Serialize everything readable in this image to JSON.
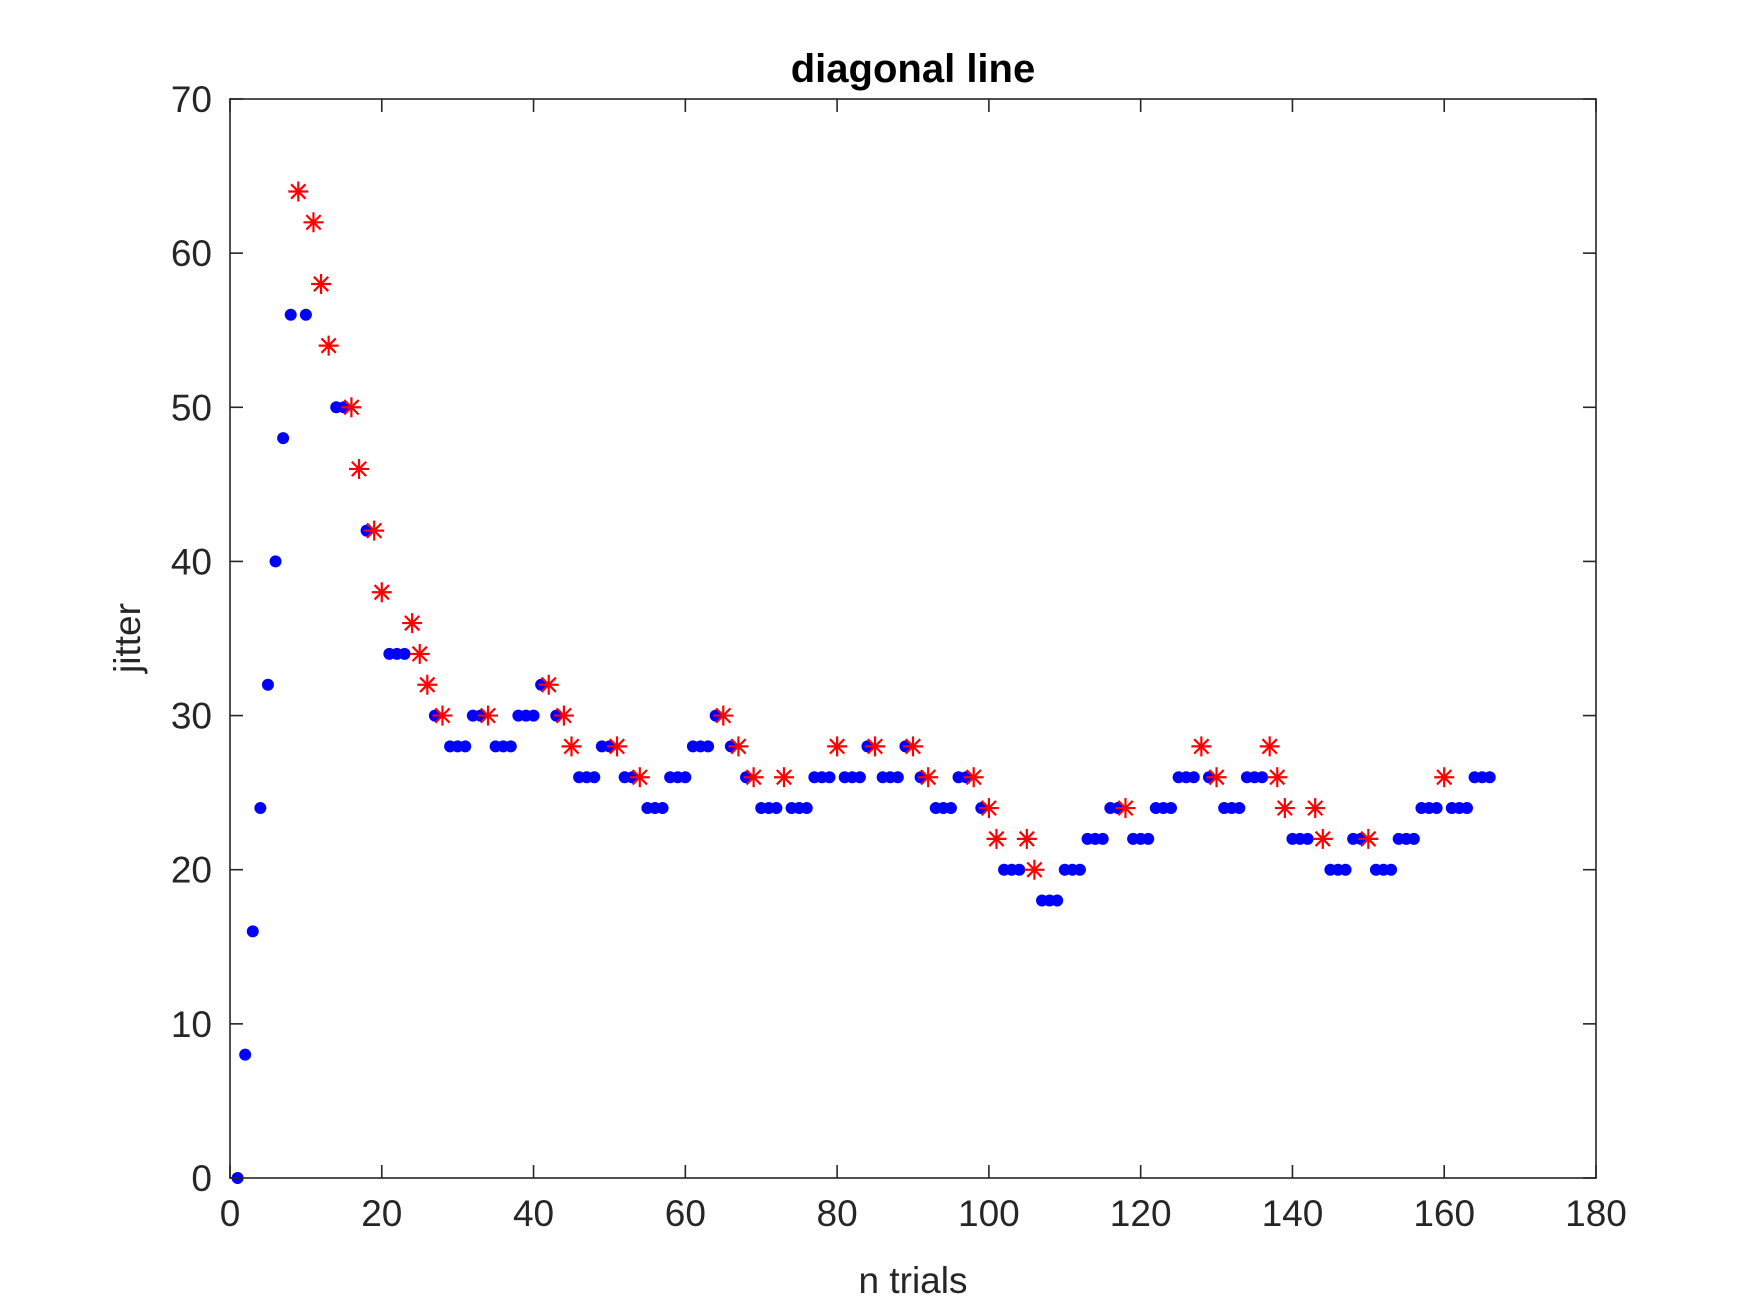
{
  "chart_data": {
    "type": "scatter",
    "title": "diagonal line",
    "xlabel": "n trials",
    "ylabel": "jitter",
    "xlim": [
      0,
      180
    ],
    "ylim": [
      0,
      70
    ],
    "x_ticks": [
      0,
      20,
      40,
      60,
      80,
      100,
      120,
      140,
      160,
      180
    ],
    "y_ticks": [
      0,
      10,
      20,
      30,
      40,
      50,
      60,
      70
    ],
    "grid": false,
    "colors": {
      "dots": "#0000ff",
      "stars": "#ff0000",
      "axis": "#262626"
    },
    "series": [
      {
        "marker": "dot",
        "color": "#0000ff",
        "points": [
          [
            1,
            0
          ],
          [
            2,
            8
          ],
          [
            3,
            16
          ],
          [
            4,
            24
          ],
          [
            5,
            32
          ],
          [
            6,
            40
          ],
          [
            7,
            48
          ],
          [
            8,
            56
          ],
          [
            10,
            56
          ],
          [
            14,
            50
          ],
          [
            15,
            50
          ],
          [
            18,
            42
          ],
          [
            21,
            34
          ],
          [
            22,
            34
          ],
          [
            23,
            34
          ],
          [
            27,
            30
          ],
          [
            29,
            28
          ],
          [
            30,
            28
          ],
          [
            31,
            28
          ],
          [
            32,
            30
          ],
          [
            33,
            30
          ],
          [
            35,
            28
          ],
          [
            36,
            28
          ],
          [
            37,
            28
          ],
          [
            38,
            30
          ],
          [
            39,
            30
          ],
          [
            40,
            30
          ],
          [
            41,
            32
          ],
          [
            43,
            30
          ],
          [
            46,
            26
          ],
          [
            47,
            26
          ],
          [
            48,
            26
          ],
          [
            49,
            28
          ],
          [
            50,
            28
          ],
          [
            52,
            26
          ],
          [
            53,
            26
          ],
          [
            55,
            24
          ],
          [
            56,
            24
          ],
          [
            57,
            24
          ],
          [
            58,
            26
          ],
          [
            59,
            26
          ],
          [
            60,
            26
          ],
          [
            61,
            28
          ],
          [
            62,
            28
          ],
          [
            63,
            28
          ],
          [
            64,
            30
          ],
          [
            66,
            28
          ],
          [
            68,
            26
          ],
          [
            70,
            24
          ],
          [
            71,
            24
          ],
          [
            72,
            24
          ],
          [
            74,
            24
          ],
          [
            75,
            24
          ],
          [
            76,
            24
          ],
          [
            77,
            26
          ],
          [
            78,
            26
          ],
          [
            79,
            26
          ],
          [
            81,
            26
          ],
          [
            82,
            26
          ],
          [
            83,
            26
          ],
          [
            84,
            28
          ],
          [
            86,
            26
          ],
          [
            87,
            26
          ],
          [
            88,
            26
          ],
          [
            89,
            28
          ],
          [
            91,
            26
          ],
          [
            93,
            24
          ],
          [
            94,
            24
          ],
          [
            95,
            24
          ],
          [
            96,
            26
          ],
          [
            97,
            26
          ],
          [
            99,
            24
          ],
          [
            102,
            20
          ],
          [
            103,
            20
          ],
          [
            104,
            20
          ],
          [
            107,
            18
          ],
          [
            108,
            18
          ],
          [
            109,
            18
          ],
          [
            110,
            20
          ],
          [
            111,
            20
          ],
          [
            112,
            20
          ],
          [
            113,
            22
          ],
          [
            114,
            22
          ],
          [
            115,
            22
          ],
          [
            116,
            24
          ],
          [
            117,
            24
          ],
          [
            119,
            22
          ],
          [
            120,
            22
          ],
          [
            121,
            22
          ],
          [
            122,
            24
          ],
          [
            123,
            24
          ],
          [
            124,
            24
          ],
          [
            125,
            26
          ],
          [
            126,
            26
          ],
          [
            127,
            26
          ],
          [
            129,
            26
          ],
          [
            131,
            24
          ],
          [
            132,
            24
          ],
          [
            133,
            24
          ],
          [
            134,
            26
          ],
          [
            135,
            26
          ],
          [
            136,
            26
          ],
          [
            140,
            22
          ],
          [
            141,
            22
          ],
          [
            142,
            22
          ],
          [
            145,
            20
          ],
          [
            146,
            20
          ],
          [
            147,
            20
          ],
          [
            148,
            22
          ],
          [
            149,
            22
          ],
          [
            151,
            20
          ],
          [
            152,
            20
          ],
          [
            153,
            20
          ],
          [
            154,
            22
          ],
          [
            155,
            22
          ],
          [
            156,
            22
          ],
          [
            157,
            24
          ],
          [
            158,
            24
          ],
          [
            159,
            24
          ],
          [
            161,
            24
          ],
          [
            162,
            24
          ],
          [
            163,
            24
          ],
          [
            164,
            26
          ],
          [
            165,
            26
          ],
          [
            166,
            26
          ]
        ]
      },
      {
        "marker": "star",
        "color": "#ff0000",
        "points": [
          [
            9,
            64
          ],
          [
            11,
            62
          ],
          [
            12,
            58
          ],
          [
            13,
            54
          ],
          [
            16,
            50
          ],
          [
            17,
            46
          ],
          [
            19,
            42
          ],
          [
            20,
            38
          ],
          [
            24,
            36
          ],
          [
            25,
            34
          ],
          [
            26,
            32
          ],
          [
            28,
            30
          ],
          [
            34,
            30
          ],
          [
            42,
            32
          ],
          [
            44,
            30
          ],
          [
            45,
            28
          ],
          [
            51,
            28
          ],
          [
            54,
            26
          ],
          [
            65,
            30
          ],
          [
            67,
            28
          ],
          [
            69,
            26
          ],
          [
            73,
            26
          ],
          [
            80,
            28
          ],
          [
            85,
            28
          ],
          [
            90,
            28
          ],
          [
            92,
            26
          ],
          [
            98,
            26
          ],
          [
            100,
            24
          ],
          [
            101,
            22
          ],
          [
            105,
            22
          ],
          [
            106,
            20
          ],
          [
            118,
            24
          ],
          [
            128,
            28
          ],
          [
            130,
            26
          ],
          [
            137,
            28
          ],
          [
            138,
            26
          ],
          [
            139,
            24
          ],
          [
            143,
            24
          ],
          [
            144,
            22
          ],
          [
            150,
            22
          ],
          [
            160,
            26
          ]
        ]
      }
    ]
  }
}
